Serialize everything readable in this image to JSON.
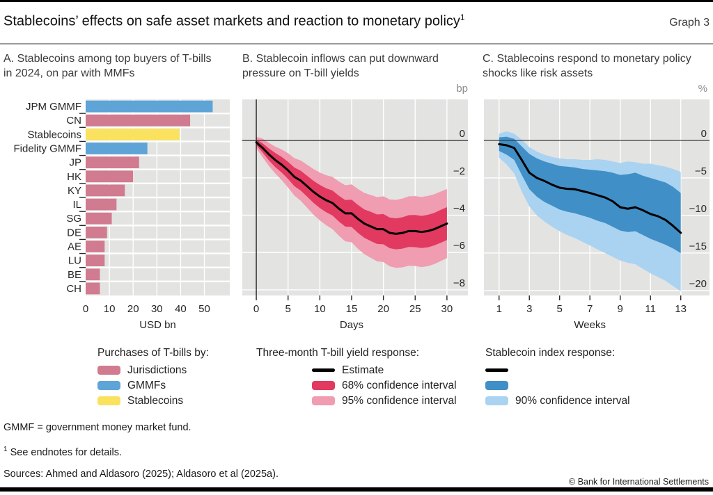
{
  "page": {
    "title": "Stablecoins’ effects on safe asset markets and reaction to monetary policy",
    "title_footnote_marker": "1",
    "graph_label": "Graph 3"
  },
  "colors": {
    "jurisdictions_pink": "#d17b90",
    "gmmf_blue": "#5ea4d7",
    "stablecoin_yellow": "#fae25e",
    "estimate_black": "#000000",
    "ci68_red": "#e1395f",
    "ci95_pink": "#f09cb1",
    "ci68_blue_dark": "#418fc7",
    "ci90_blue_light": "#aad3f1",
    "plot_background": "#e3e3e1",
    "gridline_white": "#ffffff",
    "axis_text": "#262626",
    "unit_label_gray": "#8c8c8c"
  },
  "chart_data": [
    {
      "id": "panel-a",
      "type": "bar",
      "title": "A. Stablecoins among top buyers of T-bills in 2024, on par with MMFs",
      "categories": [
        "JPM GMMF",
        "CN",
        "Stablecoins",
        "Fidelity GMMF",
        "JP",
        "HK",
        "KY",
        "IL",
        "SG",
        "DE",
        "AE",
        "LU",
        "BE",
        "CH"
      ],
      "values": [
        53.5,
        44,
        39.5,
        26,
        22.5,
        20,
        16.5,
        13,
        11,
        9,
        8,
        8,
        6,
        6
      ],
      "series_of": [
        "GMMFs",
        "Jurisdictions",
        "Stablecoins",
        "GMMFs",
        "Jurisdictions",
        "Jurisdictions",
        "Jurisdictions",
        "Jurisdictions",
        "Jurisdictions",
        "Jurisdictions",
        "Jurisdictions",
        "Jurisdictions",
        "Jurisdictions",
        "Jurisdictions"
      ],
      "xlabel": "USD bn",
      "xticks": [
        0,
        10,
        20,
        30,
        40,
        50
      ],
      "xlim": [
        0,
        60.7
      ],
      "grid": true
    },
    {
      "id": "panel-b",
      "type": "line-band",
      "title": "B. Stablecoin inflows can put downward pressure on T-bill yields",
      "unit": "bp",
      "xlabel": "Days",
      "xticks": [
        0,
        5,
        10,
        15,
        20,
        25,
        30
      ],
      "yticks": [
        0,
        -2,
        -4,
        -6,
        -8
      ],
      "xlim": [
        -2.2,
        33.3
      ],
      "ylim": [
        2.2,
        -8.3
      ],
      "axis_line_at_x": 0,
      "grid": true,
      "x": [
        0,
        1,
        2,
        3,
        4,
        5,
        6,
        7,
        8,
        9,
        10,
        11,
        12,
        13,
        14,
        15,
        16,
        17,
        18,
        19,
        20,
        21,
        22,
        23,
        24,
        25,
        26,
        27,
        28,
        29,
        30
      ],
      "estimate": [
        -0.1,
        -0.4,
        -0.75,
        -1.05,
        -1.3,
        -1.6,
        -1.95,
        -2.15,
        -2.45,
        -2.75,
        -3.0,
        -3.2,
        -3.35,
        -3.65,
        -3.9,
        -3.9,
        -4.2,
        -4.45,
        -4.6,
        -4.75,
        -4.75,
        -4.95,
        -5.0,
        -4.95,
        -4.85,
        -4.85,
        -4.9,
        -4.85,
        -4.75,
        -4.6,
        -4.45
      ],
      "estimate_label": "Estimate",
      "bands": [
        {
          "label": "95% confidence interval",
          "color_key": "ci95_pink",
          "upper": [
            0.2,
            0.1,
            -0.13,
            -0.33,
            -0.48,
            -0.68,
            -0.95,
            -1.07,
            -1.3,
            -1.53,
            -1.72,
            -1.86,
            -1.95,
            -2.2,
            -2.4,
            -2.35,
            -2.6,
            -2.81,
            -2.92,
            -3.03,
            -2.99,
            -3.16,
            -3.18,
            -3.11,
            -2.99,
            -2.98,
            -3.02,
            -2.97,
            -2.88,
            -2.74,
            -2.6
          ],
          "lower": [
            -0.4,
            -0.9,
            -1.37,
            -1.77,
            -2.12,
            -2.52,
            -2.95,
            -3.23,
            -3.6,
            -3.97,
            -4.28,
            -4.54,
            -4.75,
            -5.1,
            -5.4,
            -5.45,
            -5.8,
            -6.09,
            -6.28,
            -6.47,
            -6.51,
            -6.74,
            -6.82,
            -6.79,
            -6.71,
            -6.72,
            -6.78,
            -6.73,
            -6.62,
            -6.46,
            -6.3
          ]
        },
        {
          "label": "68% confidence interval",
          "color_key": "ci68_red",
          "upper": [
            0.05,
            -0.15,
            -0.43,
            -0.67,
            -0.88,
            -1.14,
            -1.45,
            -1.62,
            -1.89,
            -2.16,
            -2.38,
            -2.56,
            -2.68,
            -2.96,
            -3.19,
            -3.17,
            -3.45,
            -3.69,
            -3.82,
            -3.96,
            -3.94,
            -4.13,
            -4.17,
            -4.11,
            -4.0,
            -3.99,
            -4.04,
            -3.98,
            -3.88,
            -3.72,
            -3.57
          ],
          "lower": [
            -0.25,
            -0.65,
            -1.07,
            -1.43,
            -1.72,
            -2.06,
            -2.45,
            -2.68,
            -3.01,
            -3.34,
            -3.62,
            -3.84,
            -4.02,
            -4.34,
            -4.61,
            -4.63,
            -4.95,
            -5.21,
            -5.38,
            -5.54,
            -5.56,
            -5.77,
            -5.83,
            -5.79,
            -5.7,
            -5.71,
            -5.76,
            -5.72,
            -5.62,
            -5.48,
            -5.33
          ]
        }
      ]
    },
    {
      "id": "panel-c",
      "type": "line-band",
      "title": "C. Stablecoins respond to monetary policy shocks like risk assets",
      "unit": "%",
      "xlabel": "Weeks",
      "xticks": [
        1,
        3,
        5,
        7,
        9,
        11,
        13
      ],
      "yticks": [
        0,
        -5,
        -10,
        -15,
        -20
      ],
      "xlim": [
        0,
        14.9
      ],
      "ylim": [
        5.46,
        -20.65
      ],
      "axis_line_at_x": null,
      "grid": true,
      "x": [
        1,
        1.5,
        2,
        2.5,
        3,
        3.5,
        4,
        4.5,
        5,
        5.5,
        6,
        6.5,
        7,
        7.5,
        8,
        8.5,
        9,
        9.5,
        10,
        10.5,
        11,
        11.5,
        12,
        12.5,
        13
      ],
      "estimate": [
        -0.5,
        -0.65,
        -1.0,
        -2.6,
        -4.3,
        -5.0,
        -5.4,
        -5.9,
        -6.3,
        -6.45,
        -6.5,
        -6.75,
        -7.0,
        -7.3,
        -7.6,
        -8.1,
        -8.9,
        -9.1,
        -8.9,
        -9.3,
        -9.8,
        -10.1,
        -10.6,
        -11.4,
        -12.3
      ],
      "estimate_label": "",
      "bands": [
        {
          "label": "90% confidence interval",
          "color_key": "ci90_blue_light",
          "upper": [
            0.9,
            1.2,
            0.9,
            0.1,
            -0.9,
            -1.5,
            -1.9,
            -2.2,
            -2.4,
            -2.5,
            -2.5,
            -2.6,
            -2.6,
            -2.5,
            -2.6,
            -2.8,
            -3.0,
            -2.8,
            -2.9,
            -3.1,
            -3.1,
            -3.3,
            -3.5,
            -3.8,
            -4.2
          ],
          "lower": [
            -2.3,
            -3.2,
            -4.4,
            -6.8,
            -8.8,
            -10.0,
            -10.8,
            -11.5,
            -12.1,
            -12.6,
            -13.0,
            -13.5,
            -14.0,
            -14.5,
            -15.0,
            -15.5,
            -16.0,
            -16.3,
            -16.5,
            -17.1,
            -17.7,
            -18.2,
            -18.7,
            -19.4,
            -20.1
          ]
        },
        {
          "label": "",
          "color_key": "ci68_blue_dark",
          "upper": [
            0.4,
            0.5,
            0.2,
            -0.8,
            -1.8,
            -2.4,
            -2.8,
            -3.1,
            -3.4,
            -3.5,
            -3.6,
            -3.8,
            -3.9,
            -4.0,
            -4.1,
            -4.3,
            -4.6,
            -4.5,
            -4.3,
            -4.7,
            -5.0,
            -5.3,
            -5.6,
            -6.2,
            -7.0
          ],
          "lower": [
            -1.4,
            -1.9,
            -2.6,
            -4.6,
            -6.5,
            -7.5,
            -8.2,
            -8.7,
            -9.2,
            -9.5,
            -9.7,
            -10.0,
            -10.3,
            -10.7,
            -11.0,
            -11.5,
            -12.0,
            -12.2,
            -12.1,
            -12.6,
            -13.1,
            -13.5,
            -13.9,
            -14.4,
            -15.0
          ]
        }
      ]
    }
  ],
  "legends": {
    "panel_a": {
      "header": "Purchases of T-bills by:",
      "items": [
        {
          "label": "Jurisdictions",
          "color_key": "jurisdictions_pink"
        },
        {
          "label": "GMMFs",
          "color_key": "gmmf_blue"
        },
        {
          "label": "Stablecoins",
          "color_key": "stablecoin_yellow"
        }
      ]
    },
    "panel_b": {
      "header": "Three-month T-bill yield response:",
      "items": [
        {
          "label": "Estimate",
          "color_key": "estimate_black",
          "swatch": "line"
        },
        {
          "label": "68% confidence interval",
          "color_key": "ci68_red",
          "swatch": "block"
        },
        {
          "label": "95% confidence interval",
          "color_key": "ci95_pink",
          "swatch": "block"
        }
      ]
    },
    "panel_c": {
      "header": "Stablecoin index response:",
      "items": [
        {
          "label": "",
          "color_key": "estimate_black",
          "swatch": "line"
        },
        {
          "label": "",
          "color_key": "ci68_blue_dark",
          "swatch": "block"
        },
        {
          "label": "90% confidence interval",
          "color_key": "ci90_blue_light",
          "swatch": "block"
        }
      ]
    }
  },
  "footer": {
    "definition": "GMMF = government money market fund.",
    "endnote_marker": "1",
    "endnote": "See endnotes for details.",
    "sources": "Sources: Ahmed and Aldasoro (2025); Aldasoro et al (2025a).",
    "copyright": "© Bank for International Settlements"
  }
}
